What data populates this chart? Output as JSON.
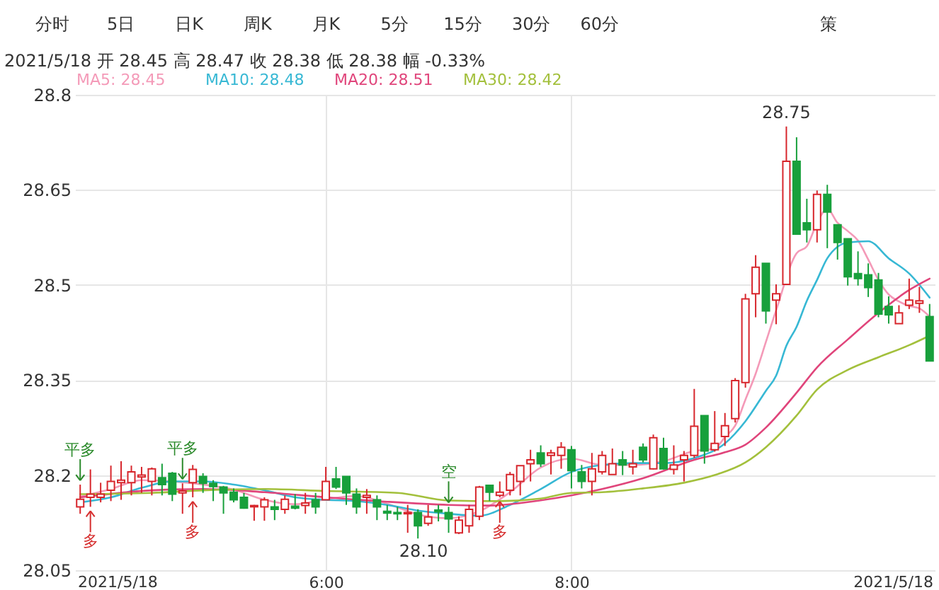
{
  "chart_data": {
    "type": "candlestick",
    "title": "2021/5/18 开 28.45 高 28.47 收 28.38 低 28.38 幅 -0.33%",
    "x": [
      4,
      4.0833,
      4.1667,
      4.25,
      4.3333,
      4.4167,
      4.5,
      4.5833,
      4.6667,
      4.75,
      4.8333,
      4.9167,
      5,
      5.0833,
      5.1667,
      5.25,
      5.3333,
      5.4167,
      5.5,
      5.5833,
      5.6667,
      5.75,
      5.8333,
      5.9167,
      6,
      6.0833,
      6.1667,
      6.25,
      6.3333,
      6.4167,
      6.5,
      6.5833,
      6.6667,
      6.75,
      6.8333,
      6.9167,
      7,
      7.0833,
      7.1667,
      7.25,
      7.3333,
      7.4167,
      7.5,
      7.5833,
      7.6667,
      7.75,
      7.8333,
      7.9167,
      8,
      8.0833,
      8.1667,
      8.25,
      8.3333,
      8.4167,
      8.5,
      8.5833,
      8.6667,
      8.75,
      8.8333,
      8.9167,
      9,
      9.0833,
      9.1667,
      9.25,
      9.3333,
      9.4167,
      9.5,
      9.5833,
      9.6667,
      9.75,
      9.8333,
      9.9167,
      10,
      10.0833,
      10.1667,
      10.25,
      10.3333,
      10.4167,
      10.5,
      10.5833,
      10.6667,
      10.75,
      10.8333,
      10.9167
    ],
    "ohlc": [
      [
        28.15,
        28.185,
        28.139,
        28.162
      ],
      [
        28.165,
        28.209,
        28.15,
        28.17
      ],
      [
        28.165,
        28.188,
        28.157,
        28.17
      ],
      [
        28.176,
        28.215,
        28.159,
        28.19
      ],
      [
        28.188,
        28.222,
        28.161,
        28.192
      ],
      [
        28.188,
        28.215,
        28.168,
        28.205
      ],
      [
        28.197,
        28.213,
        28.172,
        28.2
      ],
      [
        28.19,
        28.212,
        28.168,
        28.21
      ],
      [
        28.196,
        28.218,
        28.168,
        28.185
      ],
      [
        28.203,
        28.205,
        28.159,
        28.17
      ],
      [
        28.172,
        28.187,
        28.139,
        28.175
      ],
      [
        28.188,
        28.216,
        28.165,
        28.209
      ],
      [
        28.198,
        28.203,
        28.172,
        28.187
      ],
      [
        28.187,
        28.192,
        28.159,
        28.182
      ],
      [
        28.181,
        28.183,
        28.139,
        28.172
      ],
      [
        28.173,
        28.179,
        28.157,
        28.161
      ],
      [
        28.165,
        28.172,
        28.147,
        28.148
      ],
      [
        28.15,
        28.153,
        28.128,
        28.152
      ],
      [
        28.15,
        28.165,
        28.128,
        28.161
      ],
      [
        28.15,
        28.161,
        28.129,
        28.146
      ],
      [
        28.146,
        28.168,
        28.139,
        28.162
      ],
      [
        28.151,
        28.17,
        28.146,
        28.148
      ],
      [
        28.152,
        28.172,
        28.139,
        28.156
      ],
      [
        28.161,
        28.172,
        28.139,
        28.15
      ],
      [
        28.161,
        28.213,
        28.161,
        28.19
      ],
      [
        28.194,
        28.213,
        28.178,
        28.181
      ],
      [
        28.198,
        28.198,
        28.153,
        28.172
      ],
      [
        28.17,
        28.179,
        28.139,
        28.15
      ],
      [
        28.165,
        28.178,
        28.139,
        28.168
      ],
      [
        28.161,
        28.168,
        28.129,
        28.15
      ],
      [
        28.143,
        28.153,
        28.129,
        28.14
      ],
      [
        28.141,
        28.15,
        28.129,
        28.139
      ],
      [
        28.139,
        28.153,
        28.109,
        28.141
      ],
      [
        28.141,
        28.146,
        28.1,
        28.12
      ],
      [
        28.124,
        28.153,
        28.12,
        28.134
      ],
      [
        28.145,
        28.153,
        28.127,
        28.142
      ],
      [
        28.141,
        28.15,
        28.109,
        28.131
      ],
      [
        28.109,
        28.135,
        28.107,
        28.129
      ],
      [
        28.12,
        28.153,
        28.109,
        28.146
      ],
      [
        28.135,
        28.183,
        28.129,
        28.181
      ],
      [
        28.184,
        28.184,
        28.159,
        28.173
      ],
      [
        28.168,
        28.19,
        28.165,
        28.173
      ],
      [
        28.176,
        28.205,
        28.168,
        28.201
      ],
      [
        28.19,
        28.215,
        28.168,
        28.215
      ],
      [
        28.218,
        28.24,
        28.19,
        28.224
      ],
      [
        28.235,
        28.247,
        28.213,
        28.218
      ],
      [
        28.231,
        28.24,
        28.201,
        28.235
      ],
      [
        28.231,
        28.252,
        28.21,
        28.244
      ],
      [
        28.24,
        28.246,
        28.179,
        28.207
      ],
      [
        28.205,
        28.216,
        28.179,
        28.19
      ],
      [
        28.19,
        28.235,
        28.168,
        28.21
      ],
      [
        28.205,
        28.238,
        28.201,
        28.231
      ],
      [
        28.201,
        28.242,
        28.201,
        28.218
      ],
      [
        28.224,
        28.238,
        28.2,
        28.216
      ],
      [
        28.213,
        28.24,
        28.201,
        28.218
      ],
      [
        28.244,
        28.25,
        28.22,
        28.224
      ],
      [
        28.21,
        28.264,
        28.209,
        28.259
      ],
      [
        28.242,
        28.259,
        28.209,
        28.21
      ],
      [
        28.209,
        28.247,
        28.201,
        28.216
      ],
      [
        28.224,
        28.238,
        28.19,
        28.231
      ],
      [
        28.231,
        28.336,
        28.227,
        28.277
      ],
      [
        28.294,
        28.294,
        28.218,
        28.238
      ],
      [
        28.24,
        28.301,
        28.237,
        28.25
      ],
      [
        28.261,
        28.298,
        28.246,
        28.278
      ],
      [
        28.289,
        28.353,
        28.283,
        28.349
      ],
      [
        28.346,
        28.486,
        28.338,
        28.478
      ],
      [
        28.486,
        28.547,
        28.449,
        28.528
      ],
      [
        28.534,
        28.534,
        28.439,
        28.459
      ],
      [
        28.476,
        28.501,
        28.438,
        28.486
      ],
      [
        28.501,
        28.75,
        28.5,
        28.695
      ],
      [
        28.695,
        28.733,
        28.58,
        28.58
      ],
      [
        28.598,
        28.636,
        28.567,
        28.587
      ],
      [
        28.587,
        28.649,
        28.567,
        28.643
      ],
      [
        28.643,
        28.658,
        28.558,
        28.615
      ],
      [
        28.595,
        28.595,
        28.54,
        28.567
      ],
      [
        28.573,
        28.573,
        28.499,
        28.513
      ],
      [
        28.518,
        28.553,
        28.499,
        28.51
      ],
      [
        28.516,
        28.534,
        28.481,
        28.496
      ],
      [
        28.508,
        28.519,
        28.449,
        28.454
      ],
      [
        28.466,
        28.482,
        28.439,
        28.453
      ],
      [
        28.439,
        28.468,
        28.439,
        28.456
      ],
      [
        28.468,
        28.51,
        28.462,
        28.476
      ],
      [
        28.471,
        28.497,
        28.456,
        28.475
      ],
      [
        28.45,
        28.47,
        28.38,
        28.38
      ]
    ],
    "colors": [
      "#d7262c",
      "#d7262c",
      "#d7262c",
      "#d7262c",
      "#d7262c",
      "#d7262c",
      "#d7262c",
      "#d7262c",
      "#18a03c",
      "#18a03c",
      "#d7262c",
      "#d7262c",
      "#18a03c",
      "#18a03c",
      "#18a03c",
      "#18a03c",
      "#18a03c",
      "#d7262c",
      "#d7262c",
      "#18a03c",
      "#d7262c",
      "#18a03c",
      "#d7262c",
      "#18a03c",
      "#d7262c",
      "#18a03c",
      "#18a03c",
      "#18a03c",
      "#d7262c",
      "#18a03c",
      "#18a03c",
      "#18a03c",
      "#d7262c",
      "#18a03c",
      "#d7262c",
      "#18a03c",
      "#18a03c",
      "#d7262c",
      "#d7262c",
      "#d7262c",
      "#18a03c",
      "#d7262c",
      "#d7262c",
      "#d7262c",
      "#d7262c",
      "#18a03c",
      "#d7262c",
      "#d7262c",
      "#18a03c",
      "#18a03c",
      "#d7262c",
      "#d7262c",
      "#d7262c",
      "#18a03c",
      "#d7262c",
      "#18a03c",
      "#d7262c",
      "#18a03c",
      "#d7262c",
      "#d7262c",
      "#d7262c",
      "#18a03c",
      "#d7262c",
      "#d7262c",
      "#d7262c",
      "#d7262c",
      "#d7262c",
      "#18a03c",
      "#d7262c",
      "#d7262c",
      "#18a03c",
      "#18a03c",
      "#d7262c",
      "#18a03c",
      "#18a03c",
      "#18a03c",
      "#18a03c",
      "#18a03c",
      "#18a03c",
      "#18a03c",
      "#d7262c",
      "#d7262c",
      "#d7262c",
      "#18a03c"
    ],
    "series": [
      {
        "name": "MA5: 28.45",
        "type": "line",
        "color": "#f49ab8",
        "x": [
          4,
          4.25,
          4.5,
          4.75,
          5,
          5.25,
          5.5,
          5.75,
          6,
          6.25,
          6.5,
          6.75,
          7,
          7.25,
          7.5,
          7.75,
          8,
          8.25,
          8.5,
          8.75,
          9,
          9.1667,
          9.25,
          9.3333,
          9.4167,
          9.5,
          9.5833,
          9.6667,
          9.8333,
          9.9167,
          10,
          10.0833,
          10.1667,
          10.25,
          10.3333,
          10.4167,
          10.5,
          10.5833,
          10.6667,
          10.75,
          10.8333,
          10.9167
        ],
        "values": [
          28.166,
          28.178,
          28.192,
          28.19,
          28.185,
          28.177,
          28.161,
          28.154,
          28.162,
          28.167,
          28.155,
          28.138,
          28.132,
          28.143,
          28.173,
          28.212,
          28.226,
          28.216,
          28.216,
          28.222,
          28.238,
          28.242,
          28.26,
          28.278,
          28.319,
          28.36,
          28.41,
          28.46,
          28.55,
          28.561,
          28.598,
          28.62,
          28.598,
          28.585,
          28.57,
          28.54,
          28.508,
          28.485,
          28.474,
          28.467,
          28.463,
          28.45
        ]
      },
      {
        "name": "MA10: 28.48",
        "type": "line",
        "color": "#37b8d4",
        "x": [
          4,
          4.25,
          4.5,
          4.75,
          5,
          5.25,
          5.5,
          5.75,
          6,
          6.25,
          6.5,
          6.75,
          7,
          7.25,
          7.5,
          7.75,
          8,
          8.25,
          8.5,
          8.75,
          9,
          9.25,
          9.4167,
          9.5833,
          9.6667,
          9.75,
          9.8333,
          9.9167,
          10,
          10.0833,
          10.25,
          10.4167,
          10.5833,
          10.75,
          10.9167
        ],
        "values": [
          28.157,
          28.165,
          28.18,
          28.19,
          28.19,
          28.185,
          28.176,
          28.165,
          28.161,
          28.159,
          28.153,
          28.144,
          28.139,
          28.136,
          28.153,
          28.178,
          28.205,
          28.216,
          28.219,
          28.219,
          28.227,
          28.25,
          28.285,
          28.333,
          28.357,
          28.404,
          28.434,
          28.475,
          28.508,
          28.542,
          28.567,
          28.569,
          28.542,
          28.518,
          28.48
        ]
      },
      {
        "name": "MA20: 28.51",
        "type": "line",
        "color": "#e0457b",
        "x": [
          4,
          4.5833,
          5,
          5.5,
          6,
          6.5,
          7,
          7.3333,
          7.6667,
          8,
          8.25,
          8.5833,
          9,
          9.25,
          9.4167,
          9.5833,
          9.8333,
          10,
          10.25,
          10.5,
          10.75,
          10.9167
        ],
        "values": [
          28.165,
          28.176,
          28.178,
          28.173,
          28.165,
          28.158,
          28.153,
          28.152,
          28.158,
          28.168,
          28.178,
          28.195,
          28.224,
          28.236,
          28.248,
          28.275,
          28.33,
          28.37,
          28.414,
          28.456,
          28.492,
          28.51
        ]
      },
      {
        "name": "MA30: 28.42",
        "type": "line",
        "color": "#a3c03c",
        "x": [
          4,
          4.5833,
          5,
          5.5,
          6,
          6.5833,
          7,
          7.4167,
          7.75,
          8,
          8.25,
          8.5833,
          8.9167,
          9.1667,
          9.4167,
          9.5833,
          9.8333,
          10,
          10.25,
          10.5,
          10.75,
          10.9167
        ],
        "values": [
          28.17,
          28.172,
          28.176,
          28.178,
          28.175,
          28.172,
          28.16,
          28.159,
          28.163,
          28.172,
          28.173,
          28.179,
          28.188,
          28.2,
          28.22,
          28.244,
          28.294,
          28.335,
          28.366,
          28.386,
          28.405,
          28.42
        ]
      }
    ],
    "xlim": [
      3.9583,
      10.9583
    ],
    "xticks": [
      {
        "value": 6,
        "label": "6:00"
      },
      {
        "value": 8,
        "label": "8:00"
      }
    ],
    "ylim": [
      28.05,
      28.8
    ],
    "yticks": [
      28.05,
      28.2,
      28.35,
      28.5,
      28.65,
      28.8
    ],
    "grid": true,
    "legend": "top left",
    "annotations": [
      "分时",
      "5日",
      "日K",
      "周K",
      "月K",
      "5分",
      "15分",
      "30分",
      "60分",
      "策",
      "2021/5/18",
      "2021/5/18",
      {
        "text": "平多",
        "x": 4,
        "y": 28.185
      },
      {
        "text": "多",
        "x": 4.0833,
        "y": 28.15
      },
      {
        "text": "平多",
        "x": 4.8333,
        "y": 28.187
      },
      {
        "text": "多",
        "x": 4.9167,
        "y": 28.165
      },
      {
        "text": "空",
        "x": 7,
        "y": 28.15
      },
      {
        "text": "多",
        "x": 7.4167,
        "y": 28.165
      },
      {
        "text": "28.10",
        "x": 6.75,
        "y": 28.1
      },
      {
        "text": "28.75",
        "x": 9.75,
        "y": 28.75
      }
    ]
  }
}
